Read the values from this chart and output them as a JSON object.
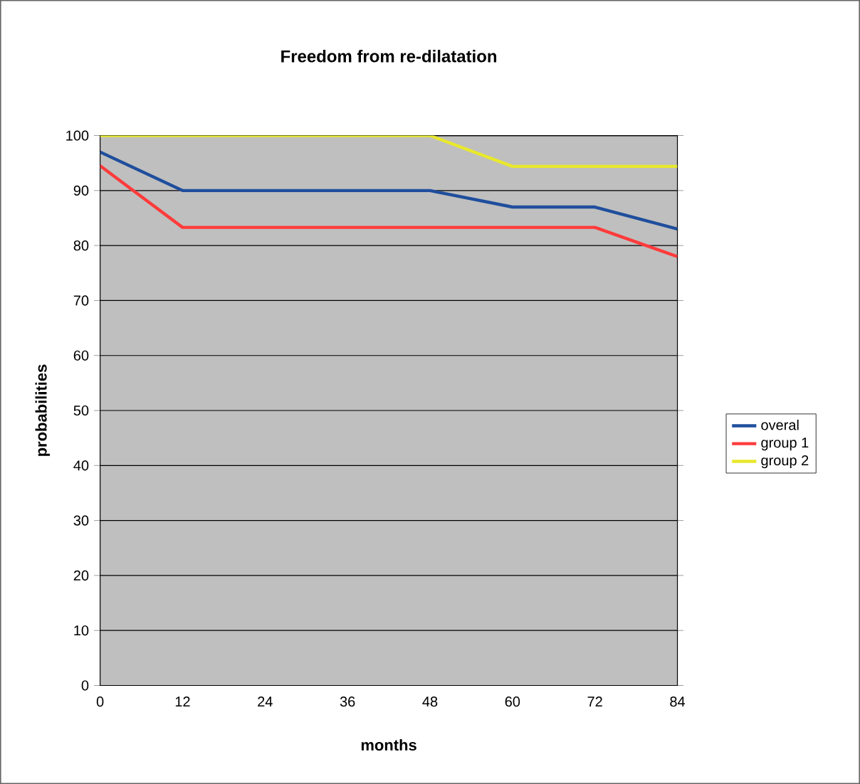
{
  "chart_data": {
    "type": "line",
    "title": "Freedom from re-dilatation",
    "xlabel": "months",
    "ylabel": "probabilities",
    "x": [
      0,
      12,
      24,
      36,
      48,
      60,
      72,
      84
    ],
    "series": [
      {
        "name": "overal",
        "color": "#1f4e9c",
        "values": [
          97,
          90,
          90,
          90,
          90,
          87,
          87,
          83
        ]
      },
      {
        "name": "group 1",
        "color": "#ff3b3b",
        "values": [
          94.5,
          83.3,
          83.3,
          83.3,
          83.3,
          83.3,
          83.3,
          78
        ]
      },
      {
        "name": "group 2",
        "color": "#e8e82e",
        "values": [
          100,
          100,
          100,
          100,
          100,
          94.4,
          94.4,
          94.4
        ]
      }
    ],
    "xlim": [
      0,
      84
    ],
    "xticks": [
      0,
      12,
      24,
      36,
      48,
      60,
      72,
      84
    ],
    "ylim": [
      0,
      100
    ],
    "yticks": [
      0,
      10,
      20,
      30,
      40,
      50,
      60,
      70,
      80,
      90,
      100
    ],
    "grid": "y",
    "legend": "right",
    "marker": "none",
    "line_style": "solid"
  }
}
